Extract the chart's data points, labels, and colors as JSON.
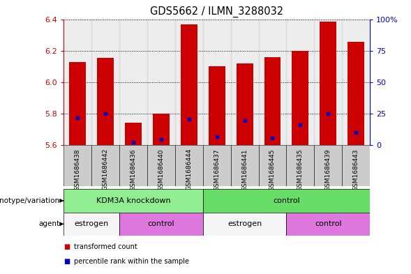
{
  "title": "GDS5662 / ILMN_3288032",
  "samples": [
    "GSM1686438",
    "GSM1686442",
    "GSM1686436",
    "GSM1686440",
    "GSM1686444",
    "GSM1686437",
    "GSM1686441",
    "GSM1686445",
    "GSM1686435",
    "GSM1686439",
    "GSM1686443"
  ],
  "transformed_counts": [
    6.13,
    6.155,
    5.745,
    5.8,
    6.365,
    6.1,
    6.12,
    6.16,
    6.2,
    6.385,
    6.255
  ],
  "percentile_values": [
    5.775,
    5.8,
    5.62,
    5.635,
    5.765,
    5.655,
    5.755,
    5.645,
    5.73,
    5.8,
    5.68
  ],
  "y_min": 5.6,
  "y_max": 6.4,
  "y_ticks": [
    5.6,
    5.8,
    6.0,
    6.2,
    6.4
  ],
  "right_y_ticks": [
    0,
    25,
    50,
    75,
    100
  ],
  "right_y_labels": [
    "0",
    "25",
    "50",
    "75",
    "100%"
  ],
  "bar_color": "#cc0000",
  "percentile_color": "#0000cc",
  "bar_width": 0.6,
  "genotype_groups": [
    {
      "label": "KDM3A knockdown",
      "start": 0,
      "end": 5,
      "color": "#90ee90"
    },
    {
      "label": "control",
      "start": 5,
      "end": 11,
      "color": "#66dd66"
    }
  ],
  "agent_groups": [
    {
      "label": "estrogen",
      "start": 0,
      "end": 2,
      "color": "#f5f5f5"
    },
    {
      "label": "control",
      "start": 2,
      "end": 5,
      "color": "#dd77dd"
    },
    {
      "label": "estrogen",
      "start": 5,
      "end": 8,
      "color": "#f5f5f5"
    },
    {
      "label": "control",
      "start": 8,
      "end": 11,
      "color": "#dd77dd"
    }
  ],
  "tick_label_color_left": "#cc0000",
  "tick_label_color_right": "#0000cc",
  "sample_bg_color": "#cccccc",
  "legend_red_label": "transformed count",
  "legend_blue_label": "percentile rank within the sample",
  "genotype_label": "genotype/variation",
  "agent_label": "agent"
}
